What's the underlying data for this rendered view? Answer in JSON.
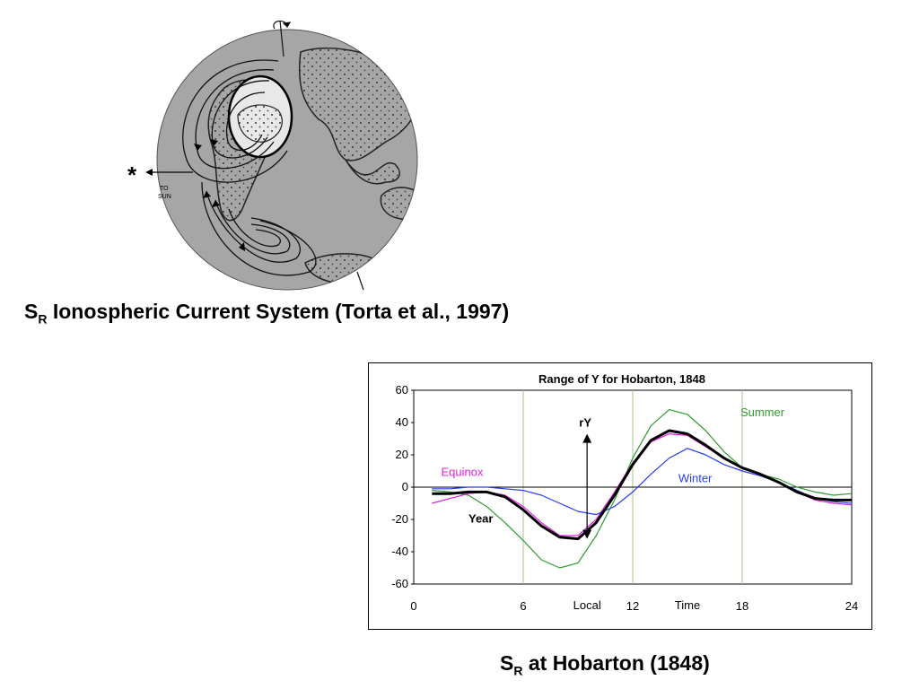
{
  "figure_top": {
    "caption_main": "S",
    "caption_sub": "R",
    "caption_rest": " Ionospheric Current System (Torta et al., 1997)",
    "annotation_lines": [
      "TO",
      "SUN"
    ],
    "star": "*"
  },
  "figure_bottom": {
    "caption_main": "S",
    "caption_sub": "R",
    "caption_rest": " at Hobarton (1848)"
  },
  "chart_data": {
    "type": "line",
    "title": "Range of Y for Hobarton, 1848",
    "xlabel_parts": [
      "Local",
      "Time"
    ],
    "xlim": [
      0,
      24
    ],
    "ylim": [
      -60,
      60
    ],
    "xticks": [
      0,
      6,
      12,
      18,
      24
    ],
    "yticks": [
      60,
      40,
      20,
      0,
      -20,
      -40,
      -60
    ],
    "vgrid": [
      6,
      12,
      18
    ],
    "annotation": {
      "label": "rY",
      "x": 9.5,
      "from": -32,
      "to": 33
    },
    "series": [
      {
        "name": "Summer",
        "color": "#2e9b2e",
        "width": 1.2,
        "x": [
          1,
          2,
          3,
          4,
          5,
          6,
          7,
          8,
          9,
          10,
          11,
          12,
          13,
          14,
          15,
          16,
          17,
          18,
          19,
          20,
          21,
          22,
          23,
          24
        ],
        "y": [
          -2,
          -3,
          -5,
          -12,
          -22,
          -33,
          -45,
          -50,
          -47,
          -30,
          -8,
          18,
          38,
          48,
          45,
          35,
          22,
          12,
          8,
          5,
          0,
          -3,
          -5,
          -4
        ]
      },
      {
        "name": "Equinox",
        "color": "#e020e0",
        "width": 1.2,
        "x": [
          1,
          2,
          3,
          4,
          5,
          6,
          7,
          8,
          9,
          10,
          11,
          12,
          13,
          14,
          15,
          16,
          17,
          18,
          19,
          20,
          21,
          22,
          23,
          24
        ],
        "y": [
          -10,
          -7,
          -4,
          -3,
          -5,
          -12,
          -22,
          -30,
          -30,
          -20,
          -3,
          15,
          28,
          33,
          32,
          25,
          18,
          12,
          8,
          3,
          -3,
          -8,
          -10,
          -11
        ]
      },
      {
        "name": "Winter",
        "color": "#2a3cf0",
        "width": 1.2,
        "x": [
          1,
          2,
          3,
          4,
          5,
          6,
          7,
          8,
          9,
          10,
          11,
          12,
          13,
          14,
          15,
          16,
          17,
          18,
          19,
          20,
          21,
          22,
          23,
          24
        ],
        "y": [
          -1,
          -1,
          0,
          0,
          -1,
          -2,
          -5,
          -10,
          -15,
          -17,
          -12,
          -3,
          8,
          18,
          24,
          20,
          14,
          10,
          7,
          3,
          -2,
          -7,
          -9,
          -10
        ]
      },
      {
        "name": "Year",
        "color": "#000000",
        "width": 3,
        "x": [
          1,
          2,
          3,
          4,
          5,
          6,
          7,
          8,
          9,
          10,
          11,
          12,
          13,
          14,
          15,
          16,
          17,
          18,
          19,
          20,
          21,
          22,
          23,
          24
        ],
        "y": [
          -4,
          -4,
          -3,
          -3,
          -6,
          -14,
          -24,
          -31,
          -32,
          -22,
          -5,
          14,
          29,
          35,
          33,
          26,
          18,
          12,
          8,
          3,
          -3,
          -7,
          -8,
          -8
        ]
      }
    ],
    "labels": [
      {
        "text": "Summer",
        "x": 17.9,
        "y": 44,
        "color": "#2e9b2e",
        "weight": "normal"
      },
      {
        "text": "Equinox",
        "x": 1.5,
        "y": 7,
        "color": "#e020e0",
        "weight": "normal"
      },
      {
        "text": "Winter",
        "x": 14.5,
        "y": 3,
        "color": "#2a3cf0",
        "weight": "normal"
      },
      {
        "text": "Year",
        "x": 3.0,
        "y": -22,
        "color": "#000000",
        "weight": "bold"
      }
    ]
  }
}
